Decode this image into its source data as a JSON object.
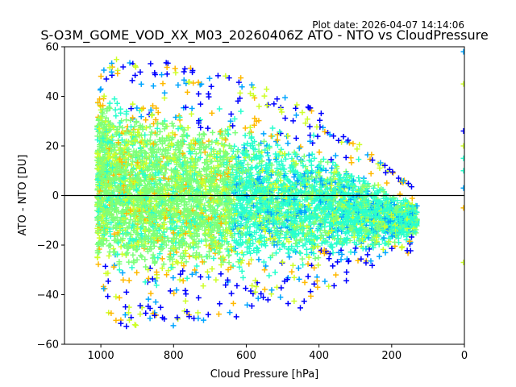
{
  "plot_date": "Plot date: 2026-04-07 14:14:06",
  "chart_data": {
    "type": "scatter",
    "title": "S-O3M_GOME_VOD_XX_M03_20260406Z ATO - NTO vs CloudPressure",
    "xlabel": "Cloud Pressure [hPa]",
    "ylabel": "ATO - NTO [DU]",
    "xlim": [
      1100,
      0
    ],
    "ylim": [
      -60,
      60
    ],
    "xticks": [
      1000,
      800,
      600,
      400,
      200,
      0
    ],
    "yticks": [
      -60,
      -40,
      -20,
      0,
      20,
      40,
      60
    ],
    "x_tick_labels": [
      "1000",
      "800",
      "600",
      "400",
      "200",
      "0"
    ],
    "y_tick_labels": [
      "−60",
      "−40",
      "−20",
      "0",
      "20",
      "40",
      "60"
    ],
    "reference_line_y": 0,
    "marker": "+",
    "colormap_colors": [
      "#0000ff",
      "#00a5ff",
      "#29ffce",
      "#7dff7a",
      "#ceff29",
      "#ffb900"
    ],
    "point_density": [
      {
        "x_range": [
          1010,
          960
        ],
        "y_range": [
          -40,
          56
        ],
        "color": "#7dff7a"
      },
      {
        "x_range": [
          960,
          800
        ],
        "y_range": [
          -45,
          52
        ],
        "color": "#7dff7a"
      },
      {
        "x_range": [
          800,
          600
        ],
        "y_range": [
          -42,
          45
        ],
        "color": "#29ffce"
      },
      {
        "x_range": [
          600,
          400
        ],
        "y_range": [
          -38,
          40
        ],
        "color": "#29ffce"
      },
      {
        "x_range": [
          400,
          200
        ],
        "y_range": [
          -30,
          20
        ],
        "color": "#29ffce"
      },
      {
        "x_range": [
          200,
          130
        ],
        "y_range": [
          -15,
          8
        ],
        "color": "#29ffce"
      }
    ]
  }
}
